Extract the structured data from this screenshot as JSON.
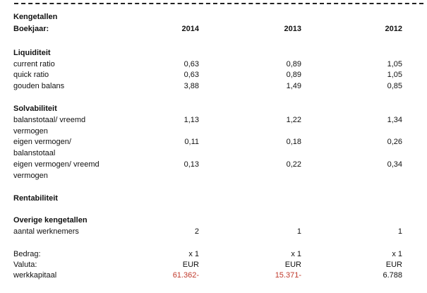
{
  "title": "Kengetallen",
  "year_label": "Boekjaar:",
  "years": [
    "2014",
    "2013",
    "2012"
  ],
  "sections": {
    "liquiditeit": {
      "heading": "Liquiditeit",
      "rows": [
        {
          "label": "current ratio",
          "values": [
            "0,63",
            "0,89",
            "1,05"
          ]
        },
        {
          "label": "quick ratio",
          "values": [
            "0,63",
            "0,89",
            "1,05"
          ]
        },
        {
          "label": "gouden balans",
          "values": [
            "3,88",
            "1,49",
            "0,85"
          ]
        }
      ]
    },
    "solvabiliteit": {
      "heading": "Solvabiliteit",
      "rows": [
        {
          "label_line1": "balanstotaal/ vreemd",
          "label_line2": "vermogen",
          "values": [
            "1,13",
            "1,22",
            "1,34"
          ]
        },
        {
          "label_line1": "eigen vermogen/",
          "label_line2": "balanstotaal",
          "values": [
            "0,11",
            "0,18",
            "0,26"
          ]
        },
        {
          "label_line1": "eigen vermogen/ vreemd",
          "label_line2": "vermogen",
          "values": [
            "0,13",
            "0,22",
            "0,34"
          ]
        }
      ]
    },
    "rentabiliteit": {
      "heading": "Rentabiliteit"
    },
    "overige": {
      "heading": "Overige kengetallen",
      "rows": [
        {
          "label": "aantal werknemers",
          "values": [
            "2",
            "1",
            "1"
          ]
        }
      ]
    }
  },
  "footer": {
    "bedrag": {
      "label": "Bedrag:",
      "values": [
        "x 1",
        "x 1",
        "x 1"
      ]
    },
    "valuta": {
      "label": "Valuta:",
      "values": [
        "EUR",
        "EUR",
        "EUR"
      ]
    },
    "werkkapitaal": {
      "label": "werkkapitaal",
      "values": [
        "61.362-",
        "15.371-",
        "6.788"
      ]
    }
  },
  "colors": {
    "negative": "#c0392b",
    "text": "#111111"
  }
}
